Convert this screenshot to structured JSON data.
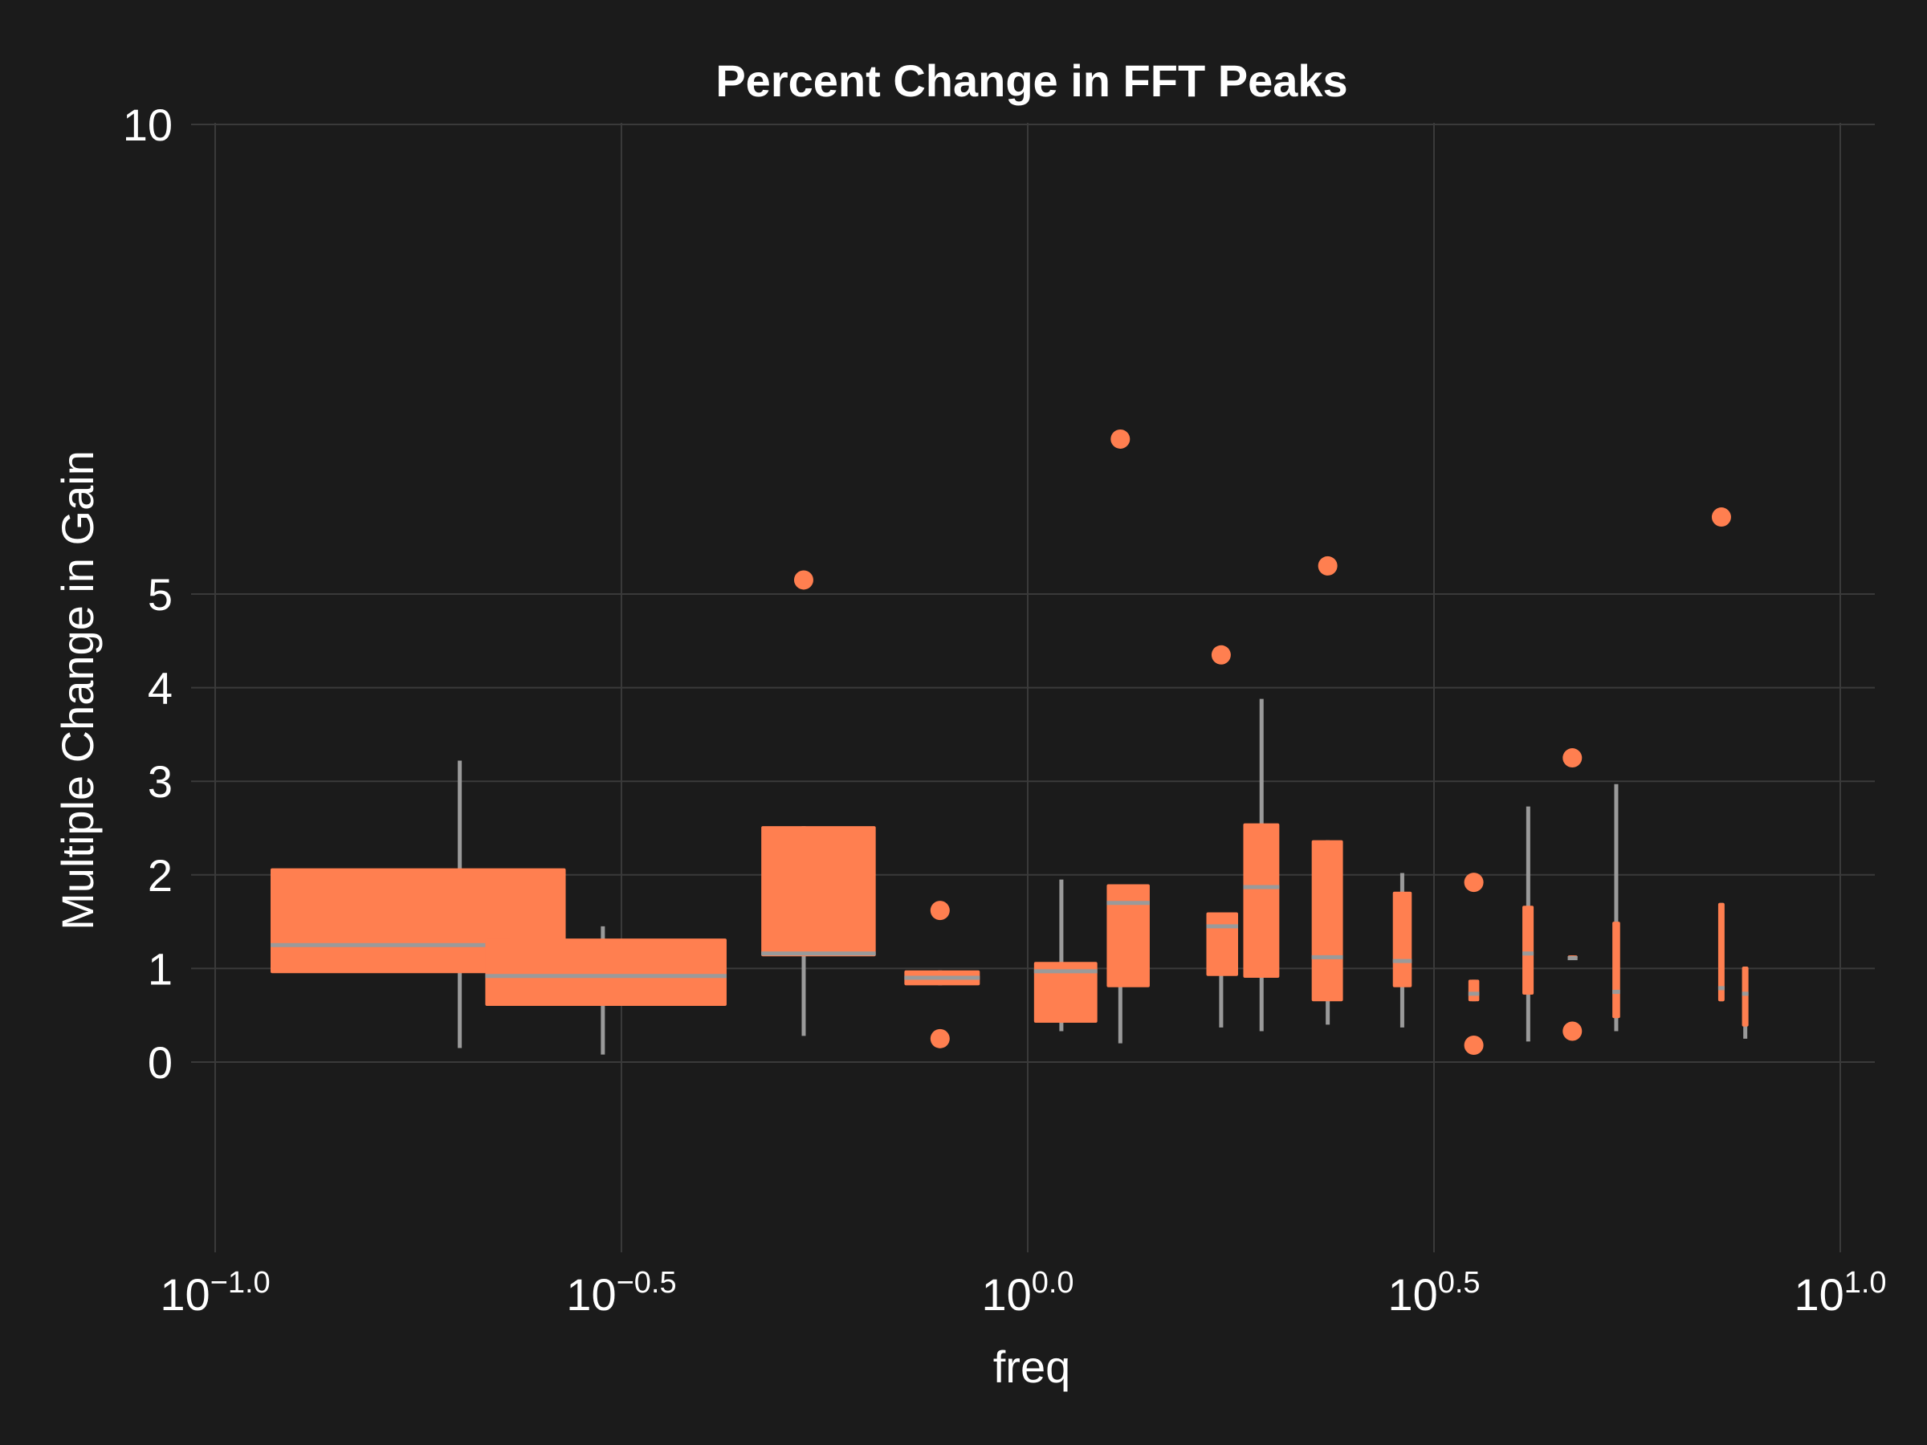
{
  "chart_data": {
    "type": "box",
    "title": "Percent Change in FFT Peaks",
    "xlabel": "freq",
    "ylabel": "Multiple Change in Gain",
    "x_scale": "log10",
    "xlim": [
      0.09,
      11.0
    ],
    "ylim": [
      -2.0,
      10.0
    ],
    "grid": true,
    "x_ticks": [
      {
        "value": 0.1,
        "base": "10",
        "exp": "−1.0"
      },
      {
        "value": 0.3162,
        "base": "10",
        "exp": "−0.5"
      },
      {
        "value": 1.0,
        "base": "10",
        "exp": "0.0"
      },
      {
        "value": 3.1623,
        "base": "10",
        "exp": "0.5"
      },
      {
        "value": 10.0,
        "base": "10",
        "exp": "1.0"
      }
    ],
    "y_ticks": [
      {
        "value": 0,
        "label": "0"
      },
      {
        "value": 1,
        "label": "1"
      },
      {
        "value": 2,
        "label": "2"
      },
      {
        "value": 3,
        "label": "3"
      },
      {
        "value": 4,
        "label": "4"
      },
      {
        "value": 5,
        "label": "5"
      },
      {
        "value": 10,
        "label": "10"
      }
    ],
    "box_color": "#ff7f50",
    "whisker_color": "#9a9a9a",
    "boxes": [
      {
        "x_min": 0.117,
        "x_max": 0.27,
        "x_center": 0.2,
        "q1": 0.95,
        "median": 1.25,
        "q3": 2.07,
        "whisker_low": 0.15,
        "whisker_high": 3.22,
        "outliers": []
      },
      {
        "x_min": 0.215,
        "x_max": 0.426,
        "x_center": 0.3,
        "q1": 0.6,
        "median": 0.92,
        "q3": 1.32,
        "whisker_low": 0.08,
        "whisker_high": 1.45,
        "outliers": []
      },
      {
        "x_min": 0.47,
        "x_max": 0.65,
        "x_center": 0.53,
        "q1": 1.13,
        "median": 1.16,
        "q3": 2.52,
        "whisker_low": 0.28,
        "whisker_high": 2.52,
        "outliers": [
          5.15
        ]
      },
      {
        "x_min": 0.705,
        "x_max": 0.873,
        "x_center": 0.78,
        "q1": 0.82,
        "median": 0.9,
        "q3": 0.98,
        "whisker_low": 0.82,
        "whisker_high": 0.98,
        "outliers": [
          1.62,
          0.25
        ]
      },
      {
        "x_min": 1.018,
        "x_max": 1.218,
        "x_center": 1.1,
        "q1": 0.42,
        "median": 0.97,
        "q3": 1.07,
        "whisker_low": 0.33,
        "whisker_high": 1.95,
        "outliers": []
      },
      {
        "x_min": 1.251,
        "x_max": 1.413,
        "x_center": 1.3,
        "q1": 0.8,
        "median": 1.7,
        "q3": 1.9,
        "whisker_low": 0.2,
        "whisker_high": 1.9,
        "outliers": [
          6.65
        ]
      },
      {
        "x_min": 1.659,
        "x_max": 1.815,
        "x_center": 1.73,
        "q1": 0.92,
        "median": 1.45,
        "q3": 1.6,
        "whisker_low": 0.37,
        "whisker_high": 1.6,
        "outliers": [
          4.35
        ]
      },
      {
        "x_min": 1.842,
        "x_max": 2.04,
        "x_center": 1.94,
        "q1": 0.9,
        "median": 1.87,
        "q3": 2.55,
        "whisker_low": 0.33,
        "whisker_high": 3.88,
        "outliers": []
      },
      {
        "x_min": 2.236,
        "x_max": 2.443,
        "x_center": 2.34,
        "q1": 0.65,
        "median": 1.12,
        "q3": 2.37,
        "whisker_low": 0.4,
        "whisker_high": 2.37,
        "outliers": [
          5.3
        ]
      },
      {
        "x_min": 2.814,
        "x_max": 2.969,
        "x_center": 2.89,
        "q1": 0.8,
        "median": 1.08,
        "q3": 1.82,
        "whisker_low": 0.37,
        "whisker_high": 2.02,
        "outliers": []
      },
      {
        "x_min": 3.486,
        "x_max": 3.595,
        "x_center": 3.54,
        "q1": 0.65,
        "median": 0.73,
        "q3": 0.88,
        "whisker_low": 0.65,
        "whisker_high": 0.88,
        "outliers": [
          1.92,
          0.18
        ]
      },
      {
        "x_min": 4.062,
        "x_max": 4.194,
        "x_center": 4.13,
        "q1": 0.72,
        "median": 1.16,
        "q3": 1.67,
        "whisker_low": 0.22,
        "whisker_high": 2.73,
        "outliers": []
      },
      {
        "x_min": 4.619,
        "x_max": 4.749,
        "x_center": 4.68,
        "q1": 1.1,
        "median": 1.11,
        "q3": 1.14,
        "whisker_low": 1.1,
        "whisker_high": 1.14,
        "outliers": [
          3.25,
          0.33
        ]
      },
      {
        "x_min": 5.242,
        "x_max": 5.358,
        "x_center": 5.3,
        "q1": 0.47,
        "median": 0.75,
        "q3": 1.5,
        "whisker_low": 0.33,
        "whisker_high": 2.97,
        "outliers": []
      },
      {
        "x_min": 7.075,
        "x_max": 7.204,
        "x_center": 7.14,
        "q1": 0.65,
        "median": 0.79,
        "q3": 1.7,
        "whisker_low": 0.65,
        "whisker_high": 1.7,
        "outliers": [
          5.82
        ]
      },
      {
        "x_min": 7.569,
        "x_max": 7.709,
        "x_center": 7.64,
        "q1": 0.38,
        "median": 0.73,
        "q3": 1.02,
        "whisker_low": 0.25,
        "whisker_high": 1.02,
        "outliers": []
      }
    ]
  }
}
